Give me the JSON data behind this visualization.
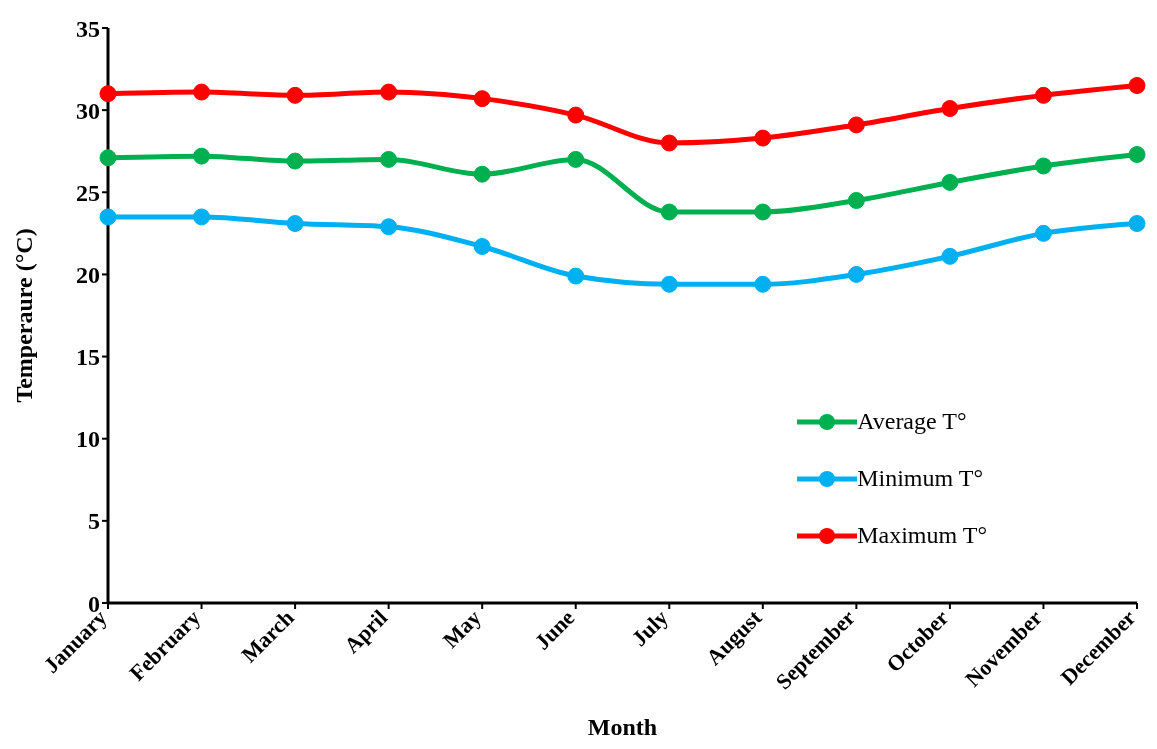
{
  "chart_data": {
    "type": "line",
    "xlabel": "Month",
    "ylabel": "Temperaure (°C)",
    "categories": [
      "January",
      "February",
      "March",
      "April",
      "May",
      "June",
      "July",
      "August",
      "September",
      "October",
      "November",
      "December"
    ],
    "series": [
      {
        "name": "Average T°",
        "color": "#00b050",
        "values": [
          27.1,
          27.2,
          26.9,
          27.0,
          26.1,
          27.0,
          23.8,
          23.8,
          24.5,
          25.6,
          26.6,
          27.3
        ]
      },
      {
        "name": "Minimum T°",
        "color": "#00b0f0",
        "values": [
          23.5,
          23.5,
          23.1,
          22.9,
          21.7,
          19.9,
          19.4,
          19.4,
          20.0,
          21.1,
          22.5,
          23.1
        ]
      },
      {
        "name": "Maximum T°",
        "color": "#ff0000",
        "values": [
          31.0,
          31.1,
          30.9,
          31.1,
          30.7,
          29.7,
          28.0,
          28.3,
          29.1,
          30.1,
          30.9,
          31.5
        ]
      }
    ],
    "ylim": [
      0,
      35
    ],
    "yticks": [
      0,
      5,
      10,
      15,
      20,
      25,
      30,
      35
    ],
    "grid": false,
    "legend": "right",
    "marker": "circle",
    "line_style": "solid"
  }
}
